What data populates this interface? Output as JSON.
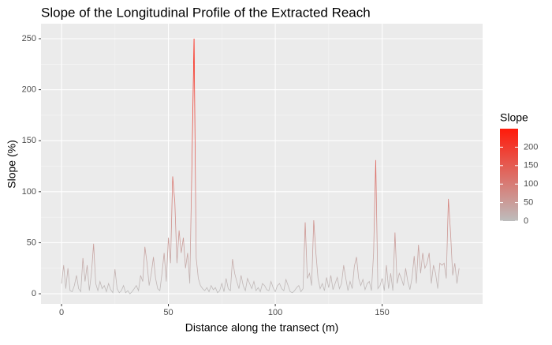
{
  "chart_data": {
    "type": "line",
    "title": "Slope of the Longitudinal Profile of the Extracted Reach",
    "x_label": "Distance along the transect (m)",
    "y_label": "Slope (%)",
    "legend_title": "Slope",
    "low_color": "#bdbdbd",
    "high_color": "#ff1a0a",
    "colorbar_lim": [
      0,
      250
    ],
    "colorbar_ticks": [
      0,
      50,
      100,
      150,
      200
    ],
    "xlim": [
      -9.6,
      197
    ],
    "ylim": [
      -10,
      264.7
    ],
    "xticks": [
      0,
      50,
      100,
      150
    ],
    "yticks": [
      0,
      50,
      100,
      150,
      200,
      250
    ],
    "grid": true,
    "minor_grid": true,
    "x": [
      0,
      1,
      2,
      3,
      4,
      5,
      6,
      7,
      8,
      9,
      10,
      11,
      12,
      13,
      14,
      15,
      16,
      17,
      18,
      19,
      20,
      21,
      22,
      23,
      24,
      25,
      26,
      27,
      28,
      29,
      30,
      31,
      32,
      33,
      34,
      35,
      36,
      37,
      38,
      39,
      40,
      41,
      42,
      43,
      44,
      45,
      46,
      47,
      48,
      49,
      50,
      51,
      52,
      53,
      54,
      55,
      56,
      57,
      58,
      59,
      60,
      61,
      62,
      63,
      64,
      65,
      66,
      67,
      68,
      69,
      70,
      71,
      72,
      73,
      74,
      75,
      76,
      77,
      78,
      79,
      80,
      81,
      82,
      83,
      84,
      85,
      86,
      87,
      88,
      89,
      90,
      91,
      92,
      93,
      94,
      95,
      96,
      97,
      98,
      99,
      100,
      101,
      102,
      103,
      104,
      105,
      106,
      107,
      108,
      109,
      110,
      111,
      112,
      113,
      114,
      115,
      116,
      117,
      118,
      119,
      120,
      121,
      122,
      123,
      124,
      125,
      126,
      127,
      128,
      129,
      130,
      131,
      132,
      133,
      134,
      135,
      136,
      137,
      138,
      139,
      140,
      141,
      142,
      143,
      144,
      145,
      146,
      147,
      148,
      149,
      150,
      151,
      152,
      153,
      154,
      155,
      156,
      157,
      158,
      159,
      160,
      161,
      162,
      163,
      164,
      165,
      166,
      167,
      168,
      169,
      170,
      171,
      172,
      173,
      174,
      175,
      176,
      177,
      178,
      179,
      180,
      181,
      182,
      183,
      184,
      185,
      186
    ],
    "values": [
      10,
      28,
      5,
      25,
      3,
      2,
      8,
      18,
      5,
      2,
      35,
      12,
      28,
      3,
      20,
      49,
      10,
      3,
      12,
      5,
      8,
      2,
      10,
      4,
      1,
      24,
      5,
      1,
      3,
      8,
      1,
      3,
      0,
      2,
      5,
      8,
      3,
      18,
      12,
      46,
      30,
      8,
      20,
      36,
      15,
      5,
      3,
      20,
      40,
      12,
      55,
      30,
      115,
      90,
      30,
      62,
      40,
      55,
      25,
      40,
      10,
      125,
      250,
      35,
      15,
      8,
      5,
      3,
      6,
      2,
      8,
      4,
      6,
      1,
      3,
      10,
      2,
      15,
      5,
      3,
      34,
      20,
      12,
      5,
      18,
      8,
      3,
      15,
      10,
      5,
      12,
      3,
      6,
      2,
      10,
      8,
      4,
      3,
      12,
      6,
      2,
      8,
      10,
      5,
      3,
      14,
      8,
      2,
      1,
      3,
      6,
      8,
      2,
      5,
      70,
      15,
      20,
      8,
      72,
      40,
      15,
      5,
      10,
      3,
      16,
      6,
      18,
      4,
      10,
      16,
      5,
      10,
      28,
      15,
      3,
      12,
      5,
      27,
      36,
      15,
      8,
      14,
      4,
      10,
      12,
      3,
      40,
      131,
      5,
      8,
      15,
      3,
      28,
      5,
      20,
      3,
      60,
      10,
      20,
      15,
      8,
      25,
      12,
      4,
      16,
      37,
      10,
      48,
      20,
      40,
      25,
      30,
      40,
      10,
      28,
      20,
      5,
      30,
      28,
      30,
      15,
      93,
      60,
      18,
      30,
      10,
      25
    ]
  }
}
